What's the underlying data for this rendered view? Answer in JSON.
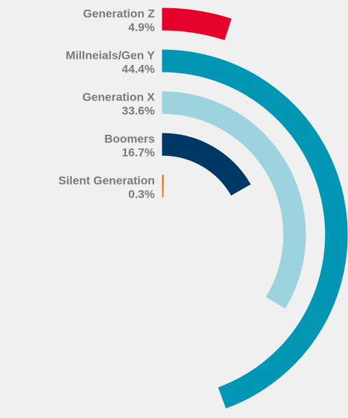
{
  "chart_data": {
    "type": "radial_bar",
    "categories": [
      "Generation Z",
      "Millneials/Gen Y",
      "Generation X",
      "Boomers",
      "Silent Generation"
    ],
    "values": [
      4.9,
      44.4,
      33.6,
      16.7,
      0.3
    ],
    "value_labels": [
      "4.9%",
      "44.4%",
      "33.6%",
      "16.7%",
      "0.3%"
    ],
    "colors": [
      "#e4002b",
      "#0096b4",
      "#9dd3de",
      "#003865",
      "#e87722"
    ],
    "ylim": [
      0,
      100
    ]
  }
}
